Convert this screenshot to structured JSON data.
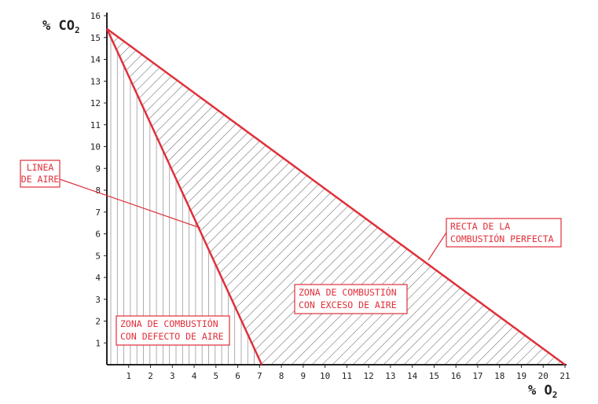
{
  "chart_data": {
    "type": "area",
    "xlabel": "% O",
    "xlabel_sub": "2",
    "ylabel": "% CO",
    "ylabel_sub": "2",
    "xlim": [
      0,
      21
    ],
    "ylim": [
      0,
      16
    ],
    "x_ticks": [
      1,
      2,
      3,
      4,
      5,
      6,
      7,
      8,
      9,
      10,
      11,
      12,
      13,
      14,
      15,
      16,
      17,
      18,
      19,
      20,
      21
    ],
    "y_ticks": [
      1,
      2,
      3,
      4,
      5,
      6,
      7,
      8,
      9,
      10,
      11,
      12,
      13,
      14,
      15,
      16
    ],
    "lines": [
      {
        "name": "Linea de aire",
        "points": [
          [
            0,
            15.4
          ],
          [
            7.1,
            0
          ]
        ]
      },
      {
        "name": "Recta de la combustión perfecta",
        "points": [
          [
            0,
            15.4
          ],
          [
            21,
            0
          ]
        ]
      }
    ],
    "regions": [
      {
        "name": "Zona de combustión con defecto de aire",
        "pattern": "vertical",
        "points": [
          [
            0,
            15.4
          ],
          [
            7.1,
            0
          ],
          [
            0,
            0
          ]
        ]
      },
      {
        "name": "Zona de combustión con exceso de aire",
        "pattern": "diagonal",
        "points": [
          [
            0,
            15.4
          ],
          [
            21,
            0
          ],
          [
            7.1,
            0
          ]
        ]
      }
    ],
    "annotations": [
      {
        "key": "linea_aire",
        "lines": [
          "LINEA",
          "DE AIRE"
        ],
        "points_to": [
          4.3,
          6.3
        ]
      },
      {
        "key": "recta",
        "lines": [
          "RECTA DE LA",
          "COMBUSTIÓN PERFECTA"
        ],
        "points_to": [
          14.7,
          4.75
        ]
      },
      {
        "key": "exceso",
        "lines": [
          "ZONA DE COMBUSTIÓN",
          "CON EXCESO DE AIRE"
        ]
      },
      {
        "key": "defecto",
        "lines": [
          "ZONA DE COMBUSTIÓN",
          "CON DEFECTO DE AIRE"
        ]
      }
    ],
    "colors": {
      "line": "#e0303a",
      "axis": "#222222",
      "hatch": "#9a9a9a",
      "annotation": "#e0303a"
    }
  }
}
